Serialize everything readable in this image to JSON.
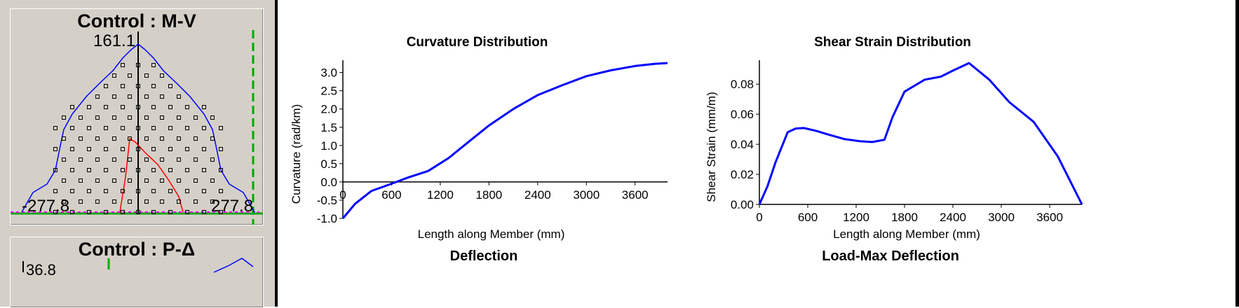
{
  "left_panels": {
    "mv": {
      "title": "Control : M-V",
      "top_label": "161.1",
      "left_label": "-277.8",
      "right_label": "277.8"
    },
    "pd": {
      "title": "Control : P-Δ",
      "corner_label": "36.8"
    }
  },
  "colors": {
    "curve": "#0000ff",
    "envelope": "#0000ff",
    "inner": "#ff0000",
    "baseline": "#00aa00",
    "dashed": "#00aa00",
    "points": "#000000"
  },
  "charts_bottom_titles": {
    "left": "Deflection",
    "right": "Load-Max Deflection"
  },
  "chart_data": [
    {
      "type": "line",
      "title": "Curvature Distribution",
      "xlabel": "Length along Member (mm)",
      "ylabel": "Curvature (rad/km)",
      "xlim": [
        0,
        4000
      ],
      "ylim": [
        -1.0,
        3.3
      ],
      "x_ticks": [
        0,
        600,
        1200,
        1800,
        2400,
        3000,
        3600
      ],
      "x_tick_labels": [
        "0",
        "600",
        "1200",
        "1800",
        "2400",
        "3000",
        "3600"
      ],
      "y_ticks": [
        -1.0,
        -0.5,
        0.0,
        0.5,
        1.0,
        1.5,
        2.0,
        2.5,
        3.0
      ],
      "y_tick_labels": [
        "-1.0",
        "-0.5",
        "0.0",
        "0.5",
        "1.0",
        "1.5",
        "2.0",
        "2.5",
        "3.0"
      ],
      "grid": false,
      "series": [
        {
          "x": [
            0,
            150,
            350,
            600,
            800,
            1050,
            1300,
            1550,
            1800,
            2100,
            2400,
            2700,
            3000,
            3300,
            3600,
            3850,
            4000
          ],
          "y": [
            -1.0,
            -0.6,
            -0.25,
            -0.05,
            0.12,
            0.3,
            0.65,
            1.1,
            1.55,
            2.0,
            2.38,
            2.65,
            2.9,
            3.06,
            3.18,
            3.24,
            3.26
          ]
        }
      ]
    },
    {
      "type": "line",
      "title": "Shear Strain Distribution",
      "xlabel": "Length along Member (mm)",
      "ylabel": "Shear Strain (mm/m)",
      "xlim": [
        0,
        4000
      ],
      "ylim": [
        0,
        0.095
      ],
      "x_ticks": [
        0,
        600,
        1200,
        1800,
        2400,
        3000,
        3600
      ],
      "x_tick_labels": [
        "0",
        "600",
        "1200",
        "1800",
        "2400",
        "3000",
        "3600"
      ],
      "y_ticks": [
        0.0,
        0.02,
        0.04,
        0.06,
        0.08
      ],
      "y_tick_labels": [
        "0.00",
        "0.02",
        "0.04",
        "0.06",
        "0.08"
      ],
      "grid": false,
      "series": [
        {
          "x": [
            0,
            100,
            200,
            350,
            450,
            550,
            700,
            850,
            1050,
            1250,
            1400,
            1550,
            1650,
            1800,
            2050,
            2250,
            2400,
            2600,
            2850,
            3100,
            3400,
            3700,
            4000
          ],
          "y": [
            0.0,
            0.012,
            0.028,
            0.048,
            0.0505,
            0.0508,
            0.049,
            0.0465,
            0.0435,
            0.042,
            0.0415,
            0.043,
            0.058,
            0.075,
            0.083,
            0.085,
            0.089,
            0.094,
            0.083,
            0.068,
            0.055,
            0.032,
            0.0
          ]
        }
      ]
    }
  ]
}
